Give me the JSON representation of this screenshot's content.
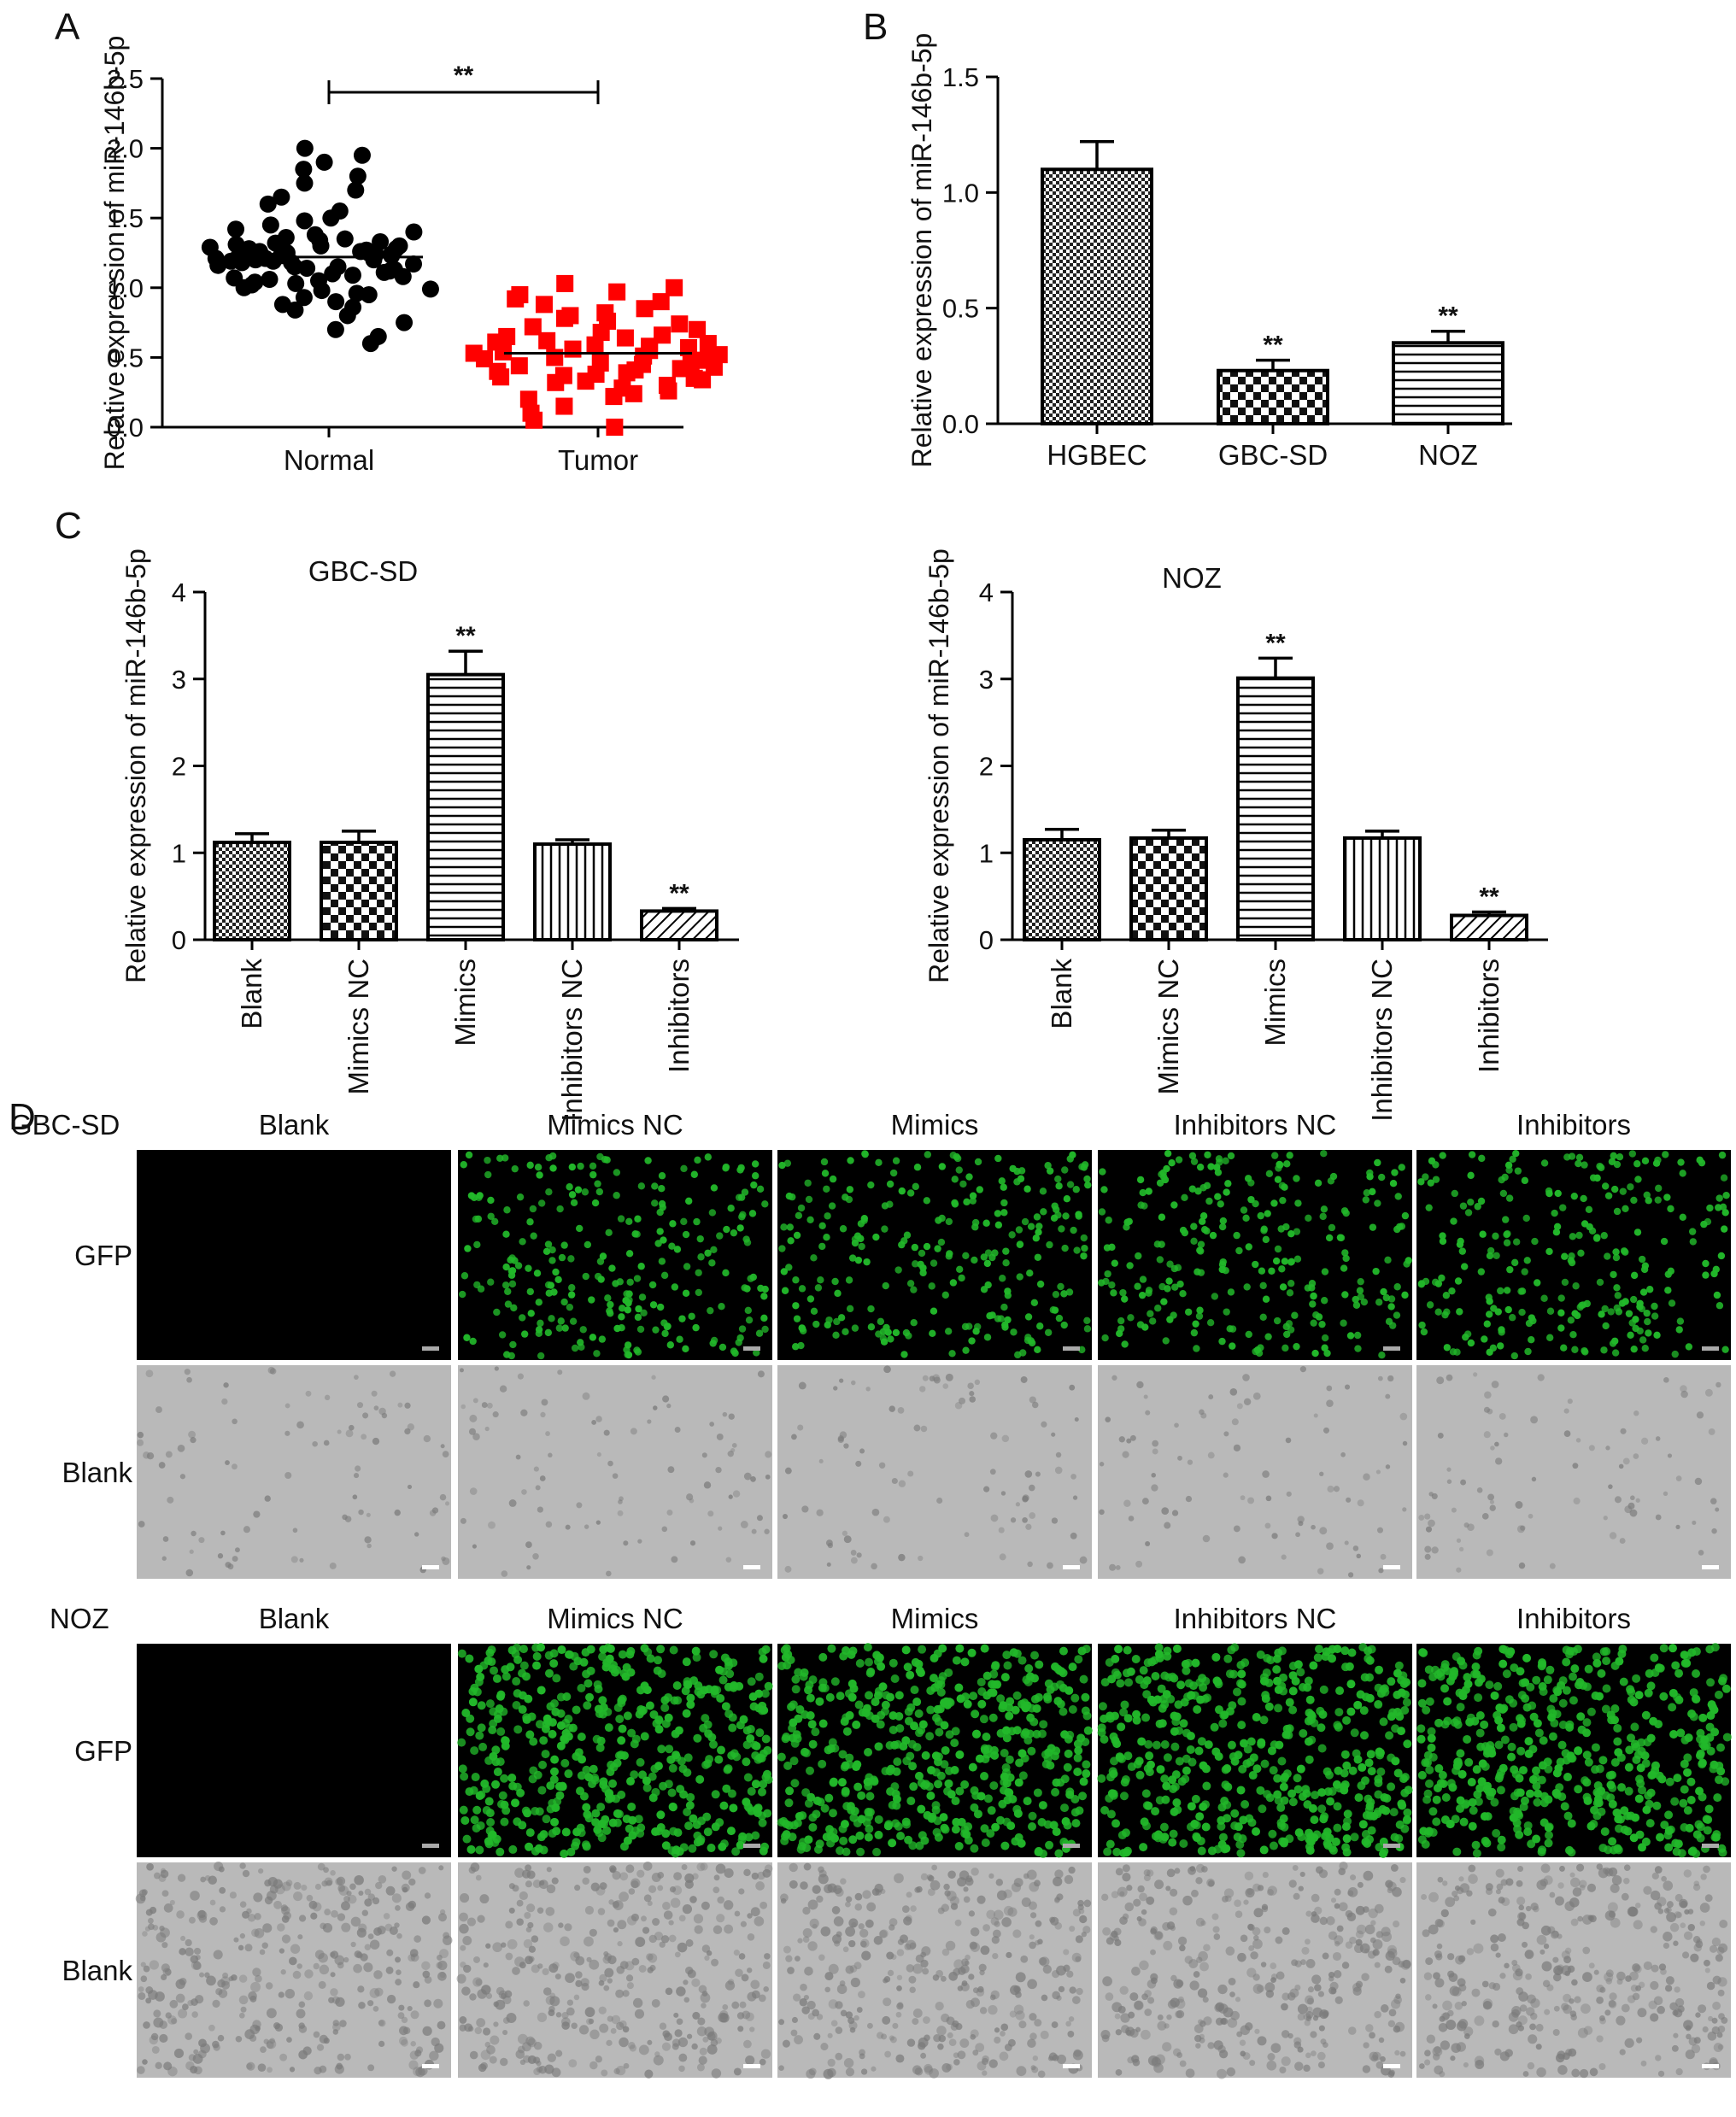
{
  "panels": {
    "A": {
      "letter": "A"
    },
    "B": {
      "letter": "B"
    },
    "C": {
      "letter": "C"
    },
    "D": {
      "letter": "D"
    }
  },
  "chart_data": [
    {
      "id": "A",
      "type": "scatter",
      "ylabel": "Relative expression of miR-146b-5p",
      "ylim": [
        0,
        2.5
      ],
      "yticks": [
        "0.0",
        "0.5",
        "1.0",
        "1.5",
        "2.0",
        "2.5"
      ],
      "categories": [
        "Normal",
        "Tumor"
      ],
      "series": [
        {
          "category": "Normal",
          "color": "#000000",
          "marker": "circle",
          "mean": 1.22,
          "values": [
            2.0,
            1.95,
            1.9,
            1.85,
            1.8,
            1.75,
            1.7,
            1.65,
            1.6,
            1.55,
            1.5,
            1.48,
            1.45,
            1.42,
            1.4,
            1.38,
            1.36,
            1.35,
            1.34,
            1.33,
            1.32,
            1.31,
            1.3,
            1.3,
            1.29,
            1.28,
            1.28,
            1.27,
            1.26,
            1.26,
            1.25,
            1.25,
            1.24,
            1.24,
            1.23,
            1.23,
            1.22,
            1.22,
            1.21,
            1.21,
            1.2,
            1.2,
            1.19,
            1.19,
            1.18,
            1.18,
            1.17,
            1.16,
            1.15,
            1.15,
            1.14,
            1.13,
            1.12,
            1.11,
            1.1,
            1.09,
            1.08,
            1.07,
            1.06,
            1.05,
            1.04,
            1.03,
            1.02,
            1.0,
            0.99,
            0.98,
            0.96,
            0.95,
            0.93,
            0.9,
            0.88,
            0.86,
            0.84,
            0.8,
            0.75,
            0.7,
            0.65,
            0.6
          ]
        },
        {
          "category": "Tumor",
          "color": "#ff0000",
          "marker": "square",
          "mean": 0.53,
          "values": [
            1.03,
            1.0,
            0.97,
            0.95,
            0.92,
            0.9,
            0.88,
            0.85,
            0.82,
            0.8,
            0.78,
            0.76,
            0.74,
            0.72,
            0.7,
            0.68,
            0.66,
            0.65,
            0.64,
            0.62,
            0.61,
            0.6,
            0.59,
            0.58,
            0.57,
            0.56,
            0.55,
            0.54,
            0.53,
            0.52,
            0.51,
            0.5,
            0.49,
            0.48,
            0.47,
            0.46,
            0.45,
            0.44,
            0.43,
            0.42,
            0.41,
            0.4,
            0.39,
            0.38,
            0.37,
            0.36,
            0.35,
            0.34,
            0.33,
            0.32,
            0.3,
            0.28,
            0.26,
            0.24,
            0.22,
            0.2,
            0.15,
            0.1,
            0.05,
            0.0
          ]
        }
      ],
      "significance": {
        "label": "**",
        "between": [
          "Normal",
          "Tumor"
        ]
      }
    },
    {
      "id": "B",
      "type": "bar",
      "ylabel": "Relative expression of miR-146b-5p",
      "ylim": [
        0,
        1.5
      ],
      "yticks": [
        "0.0",
        "0.5",
        "1.0",
        "1.5"
      ],
      "categories": [
        "HGBEC",
        "GBC-SD",
        "NOZ"
      ],
      "values": [
        1.1,
        0.23,
        0.35
      ],
      "errors": [
        0.12,
        0.045,
        0.05
      ],
      "patterns": [
        "checker-fine",
        "checker",
        "hlines"
      ],
      "annotations": [
        "",
        "**",
        "**"
      ]
    },
    {
      "id": "C1",
      "type": "bar",
      "title": "GBC-SD",
      "ylabel": "Relative expression of miR-146b-5p",
      "ylim": [
        0,
        4
      ],
      "yticks": [
        "0",
        "1",
        "2",
        "3",
        "4"
      ],
      "categories": [
        "Blank",
        "Mimics NC",
        "Mimics",
        "Inhibitors NC",
        "Inhibitors"
      ],
      "values": [
        1.12,
        1.12,
        3.05,
        1.1,
        0.33
      ],
      "errors": [
        0.1,
        0.13,
        0.27,
        0.05,
        0.03
      ],
      "patterns": [
        "checker-fine",
        "checker",
        "hlines",
        "vlines",
        "diag"
      ],
      "annotations": [
        "",
        "",
        "**",
        "",
        "**"
      ]
    },
    {
      "id": "C2",
      "type": "bar",
      "title": "NOZ",
      "ylabel": "Relative expression of miR-146b-5p",
      "ylim": [
        0,
        4
      ],
      "yticks": [
        "0",
        "1",
        "2",
        "3",
        "4"
      ],
      "categories": [
        "Blank",
        "Mimics NC",
        "Mimics",
        "Inhibitors NC",
        "Inhibitors"
      ],
      "values": [
        1.15,
        1.17,
        3.01,
        1.17,
        0.28
      ],
      "errors": [
        0.12,
        0.09,
        0.23,
        0.08,
        0.04
      ],
      "patterns": [
        "checker-fine",
        "checker",
        "hlines",
        "vlines",
        "diag"
      ],
      "annotations": [
        "",
        "",
        "**",
        "",
        "**"
      ]
    }
  ],
  "panel_d": {
    "groups": [
      {
        "cell_line": "GBC-SD",
        "columns": [
          "Blank",
          "Mimics NC",
          "Mimics",
          "Inhibitors NC",
          "Inhibitors"
        ],
        "rows": [
          "GFP",
          "Blank"
        ]
      },
      {
        "cell_line": "NOZ",
        "columns": [
          "Blank",
          "Mimics NC",
          "Mimics",
          "Inhibitors NC",
          "Inhibitors"
        ],
        "rows": [
          "GFP",
          "Blank"
        ]
      }
    ]
  },
  "colors": {
    "gfp_green": "#22b82a",
    "brightfield_gray": "#b9b9b9",
    "tumor_red": "#ff0000"
  }
}
